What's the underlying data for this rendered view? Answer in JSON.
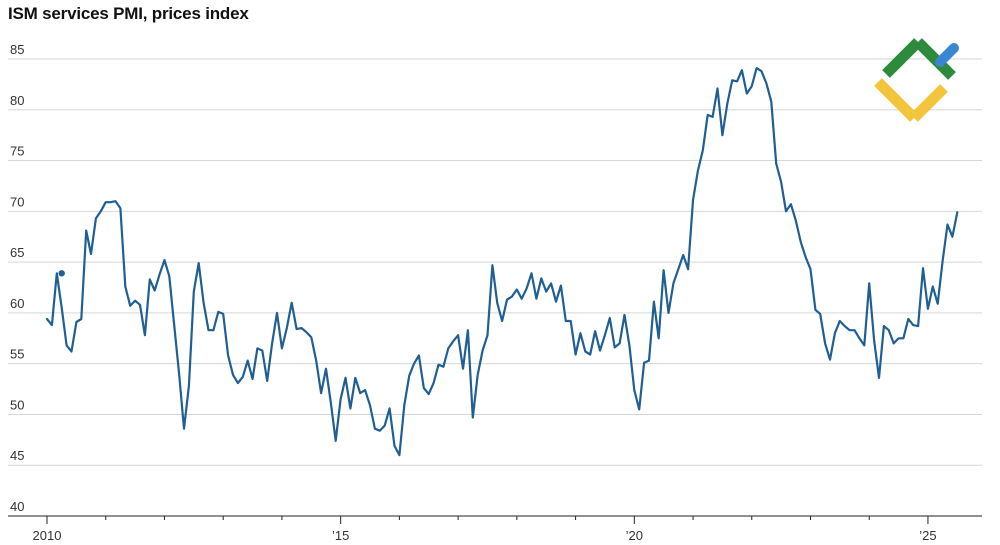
{
  "chart_data": {
    "type": "line",
    "title": "ISM services PMI, prices index",
    "xlabel": "",
    "ylabel": "",
    "ylim": [
      40,
      85
    ],
    "xlim": [
      2010.0,
      2025.75
    ],
    "yticks": [
      40,
      45,
      50,
      55,
      60,
      65,
      70,
      75,
      80,
      85
    ],
    "xticks": [
      {
        "value": 2010,
        "label": "2010"
      },
      {
        "value": 2015,
        "label": "’15"
      },
      {
        "value": 2020,
        "label": "’20"
      },
      {
        "value": 2025,
        "label": "’25"
      }
    ],
    "minor_xticks": [
      2011,
      2012,
      2013,
      2014,
      2016,
      2017,
      2018,
      2019,
      2021,
      2022,
      2023,
      2024
    ],
    "grid": true,
    "highlight_point": {
      "x": 2010.25,
      "y": 63.9
    },
    "color": "#1f5f94",
    "series": [
      {
        "name": "Prices index",
        "x_start": 2010.0,
        "step": 0.08333,
        "values": [
          59.4,
          58.8,
          63.9,
          60.5,
          56.8,
          56.2,
          59.1,
          59.4,
          68.1,
          65.8,
          69.3,
          70.0,
          70.9,
          70.9,
          71.0,
          70.3,
          62.6,
          60.7,
          61.2,
          60.8,
          57.8,
          63.3,
          62.2,
          63.8,
          65.2,
          63.6,
          58.8,
          54.0,
          48.6,
          52.8,
          62.1,
          64.9,
          61.0,
          58.3,
          58.3,
          60.1,
          59.9,
          55.8,
          53.9,
          53.1,
          53.7,
          55.3,
          53.5,
          56.5,
          56.3,
          53.3,
          57.0,
          60.0,
          56.5,
          58.5,
          61.0,
          58.4,
          58.5,
          58.1,
          57.6,
          55.3,
          52.1,
          54.5,
          51.1,
          47.4,
          51.5,
          53.6,
          50.6,
          53.6,
          52.1,
          52.4,
          50.9,
          48.6,
          48.4,
          48.9,
          50.6,
          46.9,
          46.0,
          50.9,
          53.8,
          55.0,
          55.8,
          52.6,
          52.0,
          53.1,
          54.9,
          54.7,
          56.5,
          57.2,
          57.8,
          54.5,
          58.3,
          49.7,
          53.9,
          56.3,
          57.8,
          64.7,
          61.0,
          59.2,
          61.3,
          61.6,
          62.3,
          61.4,
          62.4,
          63.9,
          61.4,
          63.4,
          62.1,
          62.9,
          61.1,
          62.7,
          59.2,
          59.2,
          55.9,
          58.0,
          56.2,
          55.9,
          58.2,
          56.3,
          57.8,
          59.5,
          56.6,
          57.0,
          59.8,
          56.8,
          52.4,
          50.5,
          55.1,
          55.3,
          61.1,
          57.5,
          64.2,
          60.0,
          62.9,
          64.3,
          65.7,
          64.3,
          71.1,
          74.0,
          76.0,
          79.5,
          79.3,
          82.1,
          77.5,
          80.6,
          82.9,
          82.8,
          83.9,
          81.6,
          82.3,
          84.1,
          83.8,
          82.6,
          80.8,
          74.7,
          72.9,
          70.0,
          70.7,
          69.1,
          67.0,
          65.5,
          64.3,
          60.3,
          59.9,
          57.0,
          55.4,
          58.0,
          59.2,
          58.7,
          58.3,
          58.3,
          57.5,
          56.8,
          62.9,
          57.3,
          53.6,
          58.7,
          58.3,
          57.0,
          57.5,
          57.5,
          59.4,
          58.8,
          58.7,
          64.4,
          60.4,
          62.6,
          60.9,
          65.1,
          68.7,
          67.5,
          69.9
        ]
      }
    ]
  },
  "logo": {
    "colors": {
      "green": "#2e8b3e",
      "blue": "#3a87d1",
      "yellow": "#f2c53d"
    }
  }
}
